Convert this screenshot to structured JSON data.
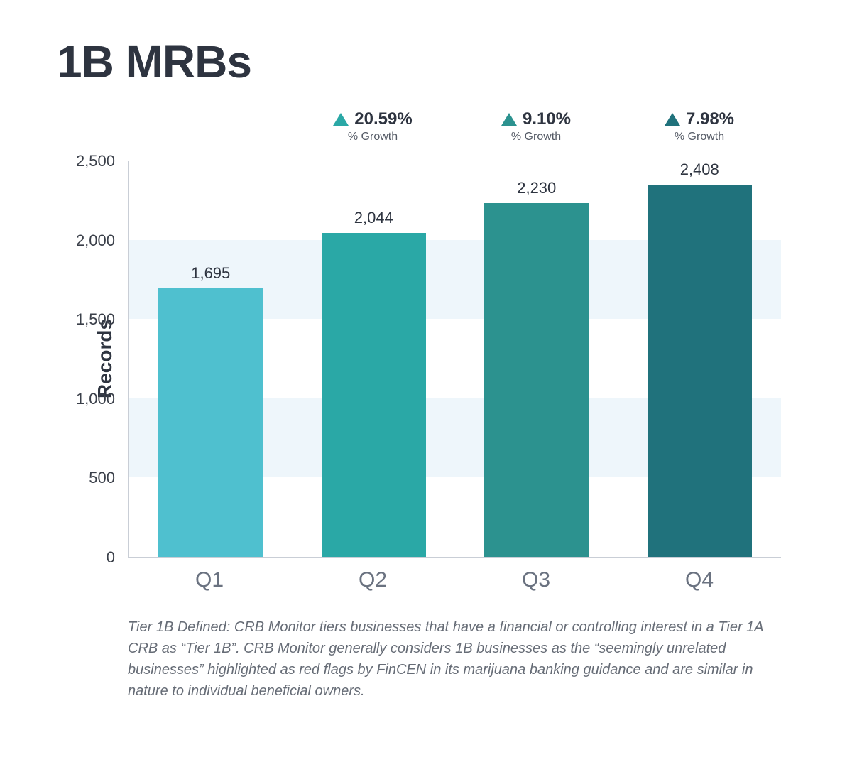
{
  "title": "1B MRBs",
  "chart": {
    "type": "bar",
    "ylabel": "Records",
    "ylim": [
      0,
      2500
    ],
    "ytick_step": 500,
    "yticks": [
      {
        "v": 0,
        "label": "0"
      },
      {
        "v": 500,
        "label": "500"
      },
      {
        "v": 1000,
        "label": "1,000"
      },
      {
        "v": 1500,
        "label": "1,500"
      },
      {
        "v": 2000,
        "label": "2,000"
      },
      {
        "v": 2500,
        "label": "2,500"
      }
    ],
    "band_color": "#eef6fb",
    "background_color": "#ffffff",
    "axis_color": "#c9ced6",
    "bar_width_pct": 64,
    "categories": [
      "Q1",
      "Q2",
      "Q3",
      "Q4"
    ],
    "values": [
      1695,
      2044,
      2230,
      2408
    ],
    "value_labels": [
      "1,695",
      "2,044",
      "2,230",
      "2,408"
    ],
    "bar_colors": [
      "#4fc0cf",
      "#2aa8a6",
      "#2c928f",
      "#20727c"
    ],
    "growth": [
      {
        "pct": "20.59%",
        "sub": "% Growth",
        "arrow_color": "#2aa8a6"
      },
      {
        "pct": "9.10%",
        "sub": "% Growth",
        "arrow_color": "#2c928f"
      },
      {
        "pct": "7.98%",
        "sub": "% Growth",
        "arrow_color": "#20727c"
      }
    ],
    "title_fontsize": 64,
    "label_fontsize": 28,
    "tick_fontsize": 22,
    "xtick_fontsize": 30,
    "value_label_fontsize": 22,
    "growth_pct_fontsize": 24,
    "growth_sub_fontsize": 16
  },
  "footnote": "Tier 1B Defined: CRB Monitor tiers businesses that have a financial or controlling interest in a Tier 1A CRB as “Tier 1B”. CRB Monitor generally considers 1B businesses as the “seemingly unrelated businesses” highlighted as red flags by FinCEN in its marijuana banking guidance and are similar in nature to individual beneficial owners."
}
